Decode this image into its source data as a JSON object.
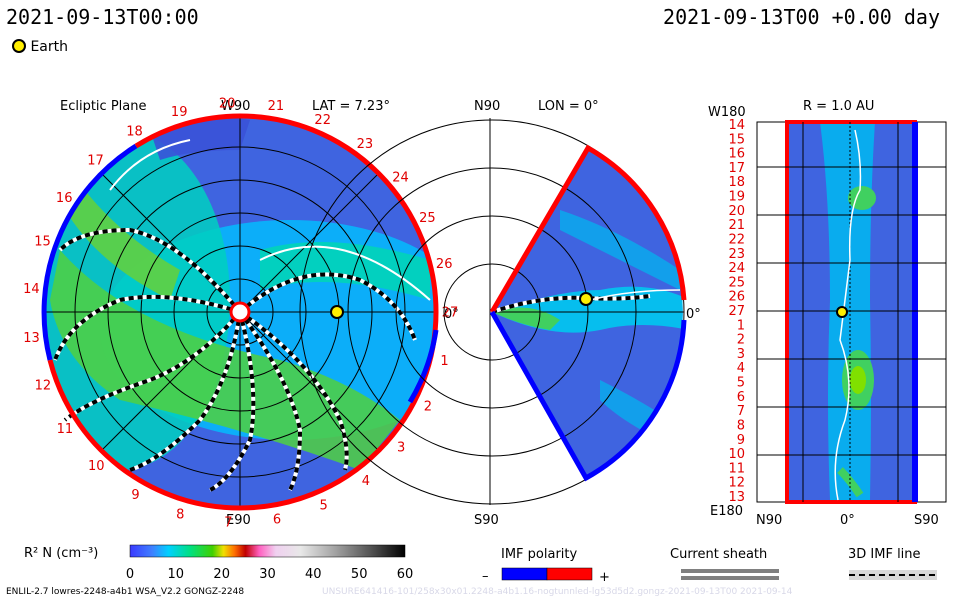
{
  "header": {
    "left_time": "2021-09-13T00:00",
    "right_time": "2021-09-13T00 +0.00 day",
    "earth_legend": "Earth"
  },
  "ecliptic": {
    "title": "Ecliptic Plane",
    "top_label": "W90",
    "bottom_label": "E90",
    "right_label": "0°",
    "lat_label": "LAT = 7.23°",
    "rim_numbers": [
      "1",
      "2",
      "3",
      "4",
      "5",
      "6",
      "7",
      "8",
      "9",
      "10",
      "11",
      "12",
      "13",
      "14",
      "15",
      "16",
      "17",
      "18",
      "19",
      "20",
      "21",
      "22",
      "23",
      "24",
      "25",
      "26",
      "27"
    ]
  },
  "meridional": {
    "lon_label": "LON = 0°",
    "top_label": "N90",
    "bottom_label": "S90",
    "right_label": "0°"
  },
  "map": {
    "title": "R = 1.0 AU",
    "top_left": "W180",
    "bottom_left": "E180",
    "x_labels": [
      "N90",
      "0°",
      "S90"
    ],
    "rows": [
      "14",
      "15",
      "16",
      "17",
      "18",
      "19",
      "20",
      "21",
      "22",
      "23",
      "24",
      "25",
      "26",
      "27",
      "1",
      "2",
      "3",
      "4",
      "5",
      "6",
      "7",
      "8",
      "9",
      "10",
      "11",
      "12",
      "13"
    ]
  },
  "colorbar": {
    "label": "R² N (cm⁻³)",
    "ticks": [
      "0",
      "10",
      "20",
      "30",
      "40",
      "50",
      "60"
    ],
    "range": [
      0,
      60
    ]
  },
  "legend": {
    "imf_title": "IMF polarity",
    "minus": "–",
    "plus": "+",
    "sheath_title": "Current sheath",
    "imf3d_title": "3D IMF line"
  },
  "footer": {
    "left": "ENLIL-2.7 lowres-2248-a4b1 WSA_V2.2 GONGZ-2248",
    "right": "UNSURE641416-101/258x30x01.2248-a4b1.16-nogtunnled-lg53d5d2.gongz-2021-09-13T00    2021-09-14"
  },
  "colors": {
    "background_field": "#3f64e0",
    "accent_red": "#ff0000",
    "accent_blue": "#0000ff",
    "earth": "#ffee00"
  },
  "chart_data": [
    {
      "type": "heatmap",
      "title": "Ecliptic Plane",
      "annotations": [
        "W90",
        "E90",
        "0°",
        "LAT = 7.23°"
      ],
      "earth_position": {
        "angle_deg": 0,
        "r_au": 1.0
      }
    },
    {
      "type": "heatmap",
      "title": "LON = 0°",
      "annotations": [
        "N90",
        "S90",
        "0°"
      ],
      "earth_position": {
        "angle_deg": 0,
        "r_au": 1.0
      }
    },
    {
      "type": "heatmap",
      "title": "R = 1.0 AU",
      "x_labels": [
        "N90",
        "0°",
        "S90"
      ],
      "y_labels": [
        "14",
        "15",
        "16",
        "17",
        "18",
        "19",
        "20",
        "21",
        "22",
        "23",
        "24",
        "25",
        "26",
        "27",
        "1",
        "2",
        "3",
        "4",
        "5",
        "6",
        "7",
        "8",
        "9",
        "10",
        "11",
        "12",
        "13"
      ],
      "colorbar": {
        "label": "R² N (cm⁻³)",
        "min": 0,
        "max": 60
      }
    }
  ]
}
